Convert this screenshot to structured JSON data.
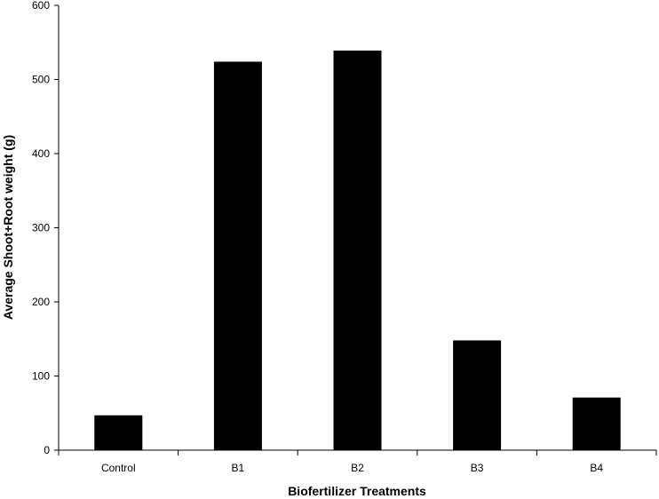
{
  "chart_data": {
    "type": "bar",
    "title": "",
    "xlabel": "Biofertilizer Treatments",
    "ylabel": "Average Shoot+Root weight (g)",
    "categories": [
      "Control",
      "B1",
      "B2",
      "B3",
      "B4"
    ],
    "values": [
      47,
      524,
      539,
      148,
      71
    ],
    "ylim": [
      0,
      600
    ],
    "yticks": [
      0,
      100,
      200,
      300,
      400,
      500,
      600
    ],
    "grid": false,
    "legend": "none",
    "bar_color": "#000000"
  }
}
